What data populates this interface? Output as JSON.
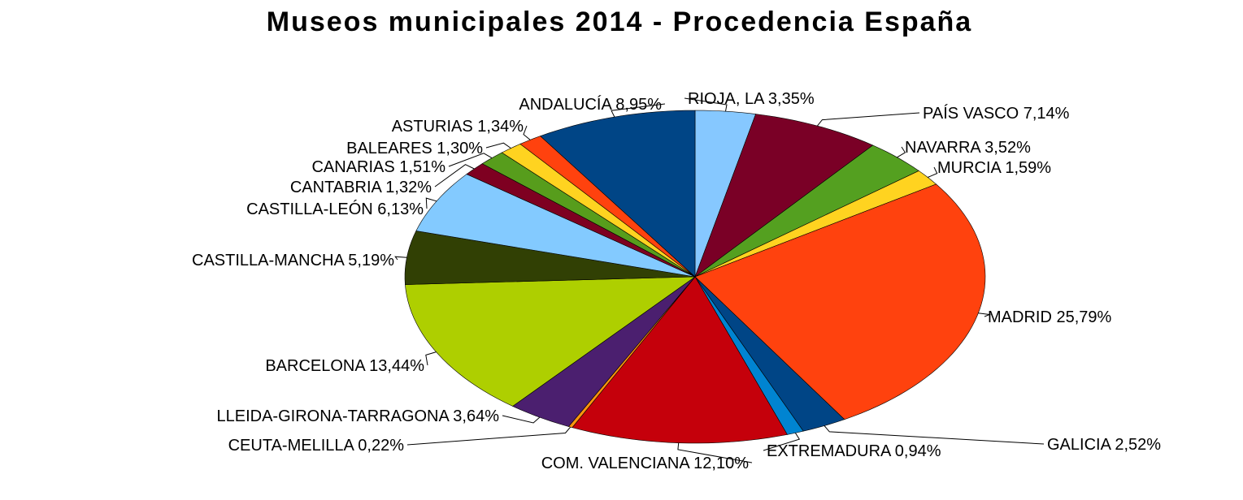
{
  "chart_data": {
    "type": "pie",
    "title": "Museos municipales 2014 - Procedencia España",
    "legend": "none",
    "slices": [
      {
        "label": "RIOJA, LA 3,35%",
        "value": 3.35,
        "color": "#86C8FF"
      },
      {
        "label": "PAÍS VASCO 7,14%",
        "value": 7.14,
        "color": "#7A0026"
      },
      {
        "label": "NAVARRA 3,52%",
        "value": 3.52,
        "color": "#54A020"
      },
      {
        "label": "MURCIA 1,59%",
        "value": 1.59,
        "color": "#FFD320"
      },
      {
        "label": "MADRID 25,79%",
        "value": 25.79,
        "color": "#FF420E"
      },
      {
        "label": "GALICIA 2,52%",
        "value": 2.52,
        "color": "#004586"
      },
      {
        "label": "EXTREMADURA 0,94%",
        "value": 0.94,
        "color": "#0084D1"
      },
      {
        "label": "COM. VALENCIANA 12,10%",
        "value": 12.1,
        "color": "#C5000B"
      },
      {
        "label": "CEUTA-MELILLA 0,22%",
        "value": 0.22,
        "color": "#FF950E"
      },
      {
        "label": "LLEIDA-GIRONA-TARRAGONA 3,64%",
        "value": 3.64,
        "color": "#4B1F6F"
      },
      {
        "label": "BARCELONA 13,44%",
        "value": 13.44,
        "color": "#AECF00"
      },
      {
        "label": "CASTILLA-MANCHA 5,19%",
        "value": 5.19,
        "color": "#314004"
      },
      {
        "label": "CASTILLA-LEÓN 6,13%",
        "value": 6.13,
        "color": "#83CAFF"
      },
      {
        "label": "CANTABRIA 1,32%",
        "value": 1.32,
        "color": "#7E0021"
      },
      {
        "label": "CANARIAS 1,51%",
        "value": 1.51,
        "color": "#579D1C"
      },
      {
        "label": "BALEARES 1,30%",
        "value": 1.3,
        "color": "#FFD320"
      },
      {
        "label": "ASTURIAS 1,34%",
        "value": 1.34,
        "color": "#FF420E"
      },
      {
        "label": "ANDALUCÍA 8,95%",
        "value": 8.95,
        "color": "#004586"
      }
    ]
  }
}
